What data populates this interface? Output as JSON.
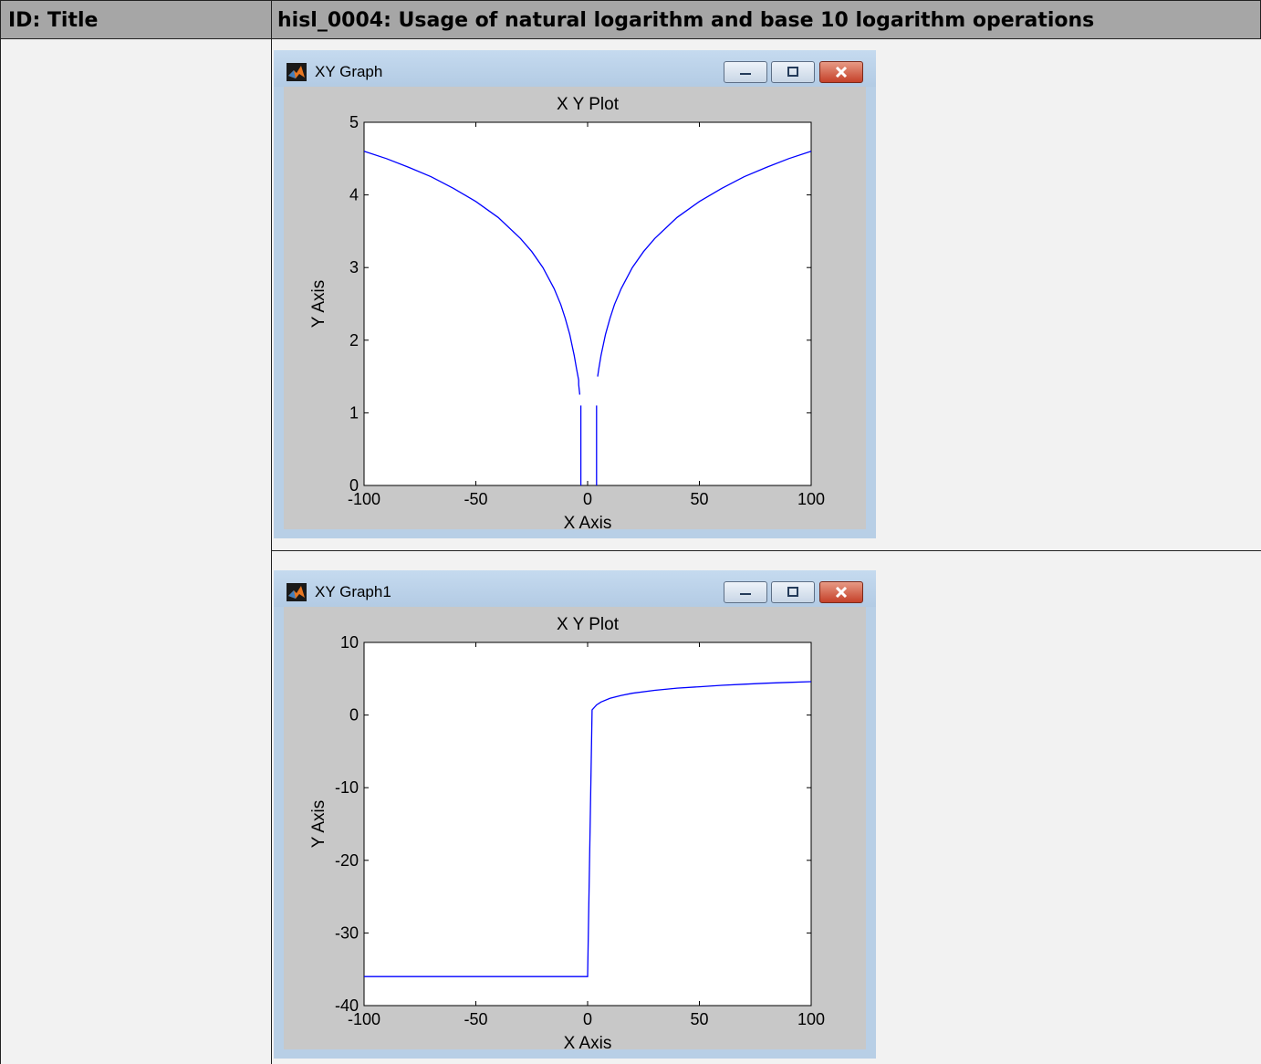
{
  "table": {
    "header_left": "ID: Title",
    "header_right": "hisl_0004: Usage of natural logarithm and base 10 logarithm operations"
  },
  "windows": [
    {
      "title": "XY Graph"
    },
    {
      "title": "XY Graph1"
    }
  ],
  "chart_data": [
    {
      "type": "line",
      "title": "X Y Plot",
      "xlabel": "X Axis",
      "ylabel": "Y Axis",
      "xlim": [
        -100,
        100
      ],
      "ylim": [
        0,
        5
      ],
      "xticks": [
        -100,
        -50,
        0,
        50,
        100
      ],
      "yticks": [
        0,
        1,
        2,
        3,
        4,
        5
      ],
      "grid": false,
      "line_color": "#0000ff",
      "series": [
        {
          "segments": [
            {
              "x": [
                -100,
                -90,
                -80,
                -70,
                -60,
                -50,
                -40,
                -30,
                -25,
                -20,
                -15,
                -12,
                -10,
                -8,
                -6,
                -5,
                -4,
                -4,
                -3.5
              ],
              "y": [
                4.6,
                4.5,
                4.38,
                4.25,
                4.09,
                3.91,
                3.69,
                3.4,
                3.22,
                3.0,
                2.71,
                2.49,
                2.3,
                2.08,
                1.79,
                1.61,
                1.45,
                1.39,
                1.25
              ]
            },
            {
              "x": [
                -3,
                -3
              ],
              "y": [
                1.1,
                0
              ]
            },
            {
              "x": [
                4,
                4
              ],
              "y": [
                0,
                1.1
              ]
            },
            {
              "x": [
                4.5,
                5,
                6,
                8,
                10,
                12,
                15,
                20,
                25,
                30,
                40,
                50,
                60,
                70,
                80,
                90,
                100
              ],
              "y": [
                1.5,
                1.61,
                1.79,
                2.08,
                2.3,
                2.49,
                2.71,
                3.0,
                3.22,
                3.4,
                3.69,
                3.91,
                4.09,
                4.25,
                4.38,
                4.5,
                4.6
              ]
            }
          ]
        }
      ]
    },
    {
      "type": "line",
      "title": "X Y Plot",
      "xlabel": "X Axis",
      "ylabel": "Y Axis",
      "xlim": [
        -100,
        100
      ],
      "ylim": [
        -40,
        10
      ],
      "xticks": [
        -100,
        -50,
        0,
        50,
        100
      ],
      "yticks": [
        -40,
        -30,
        -20,
        -10,
        0,
        10
      ],
      "grid": false,
      "line_color": "#0000ff",
      "series": [
        {
          "segments": [
            {
              "x": [
                -100,
                0,
                2,
                4,
                6,
                10,
                15,
                20,
                30,
                40,
                50,
                60,
                70,
                80,
                90,
                100
              ],
              "y": [
                -36,
                -36,
                0.7,
                1.4,
                1.8,
                2.3,
                2.7,
                3.0,
                3.4,
                3.7,
                3.9,
                4.1,
                4.25,
                4.38,
                4.5,
                4.6
              ]
            }
          ]
        }
      ]
    }
  ]
}
